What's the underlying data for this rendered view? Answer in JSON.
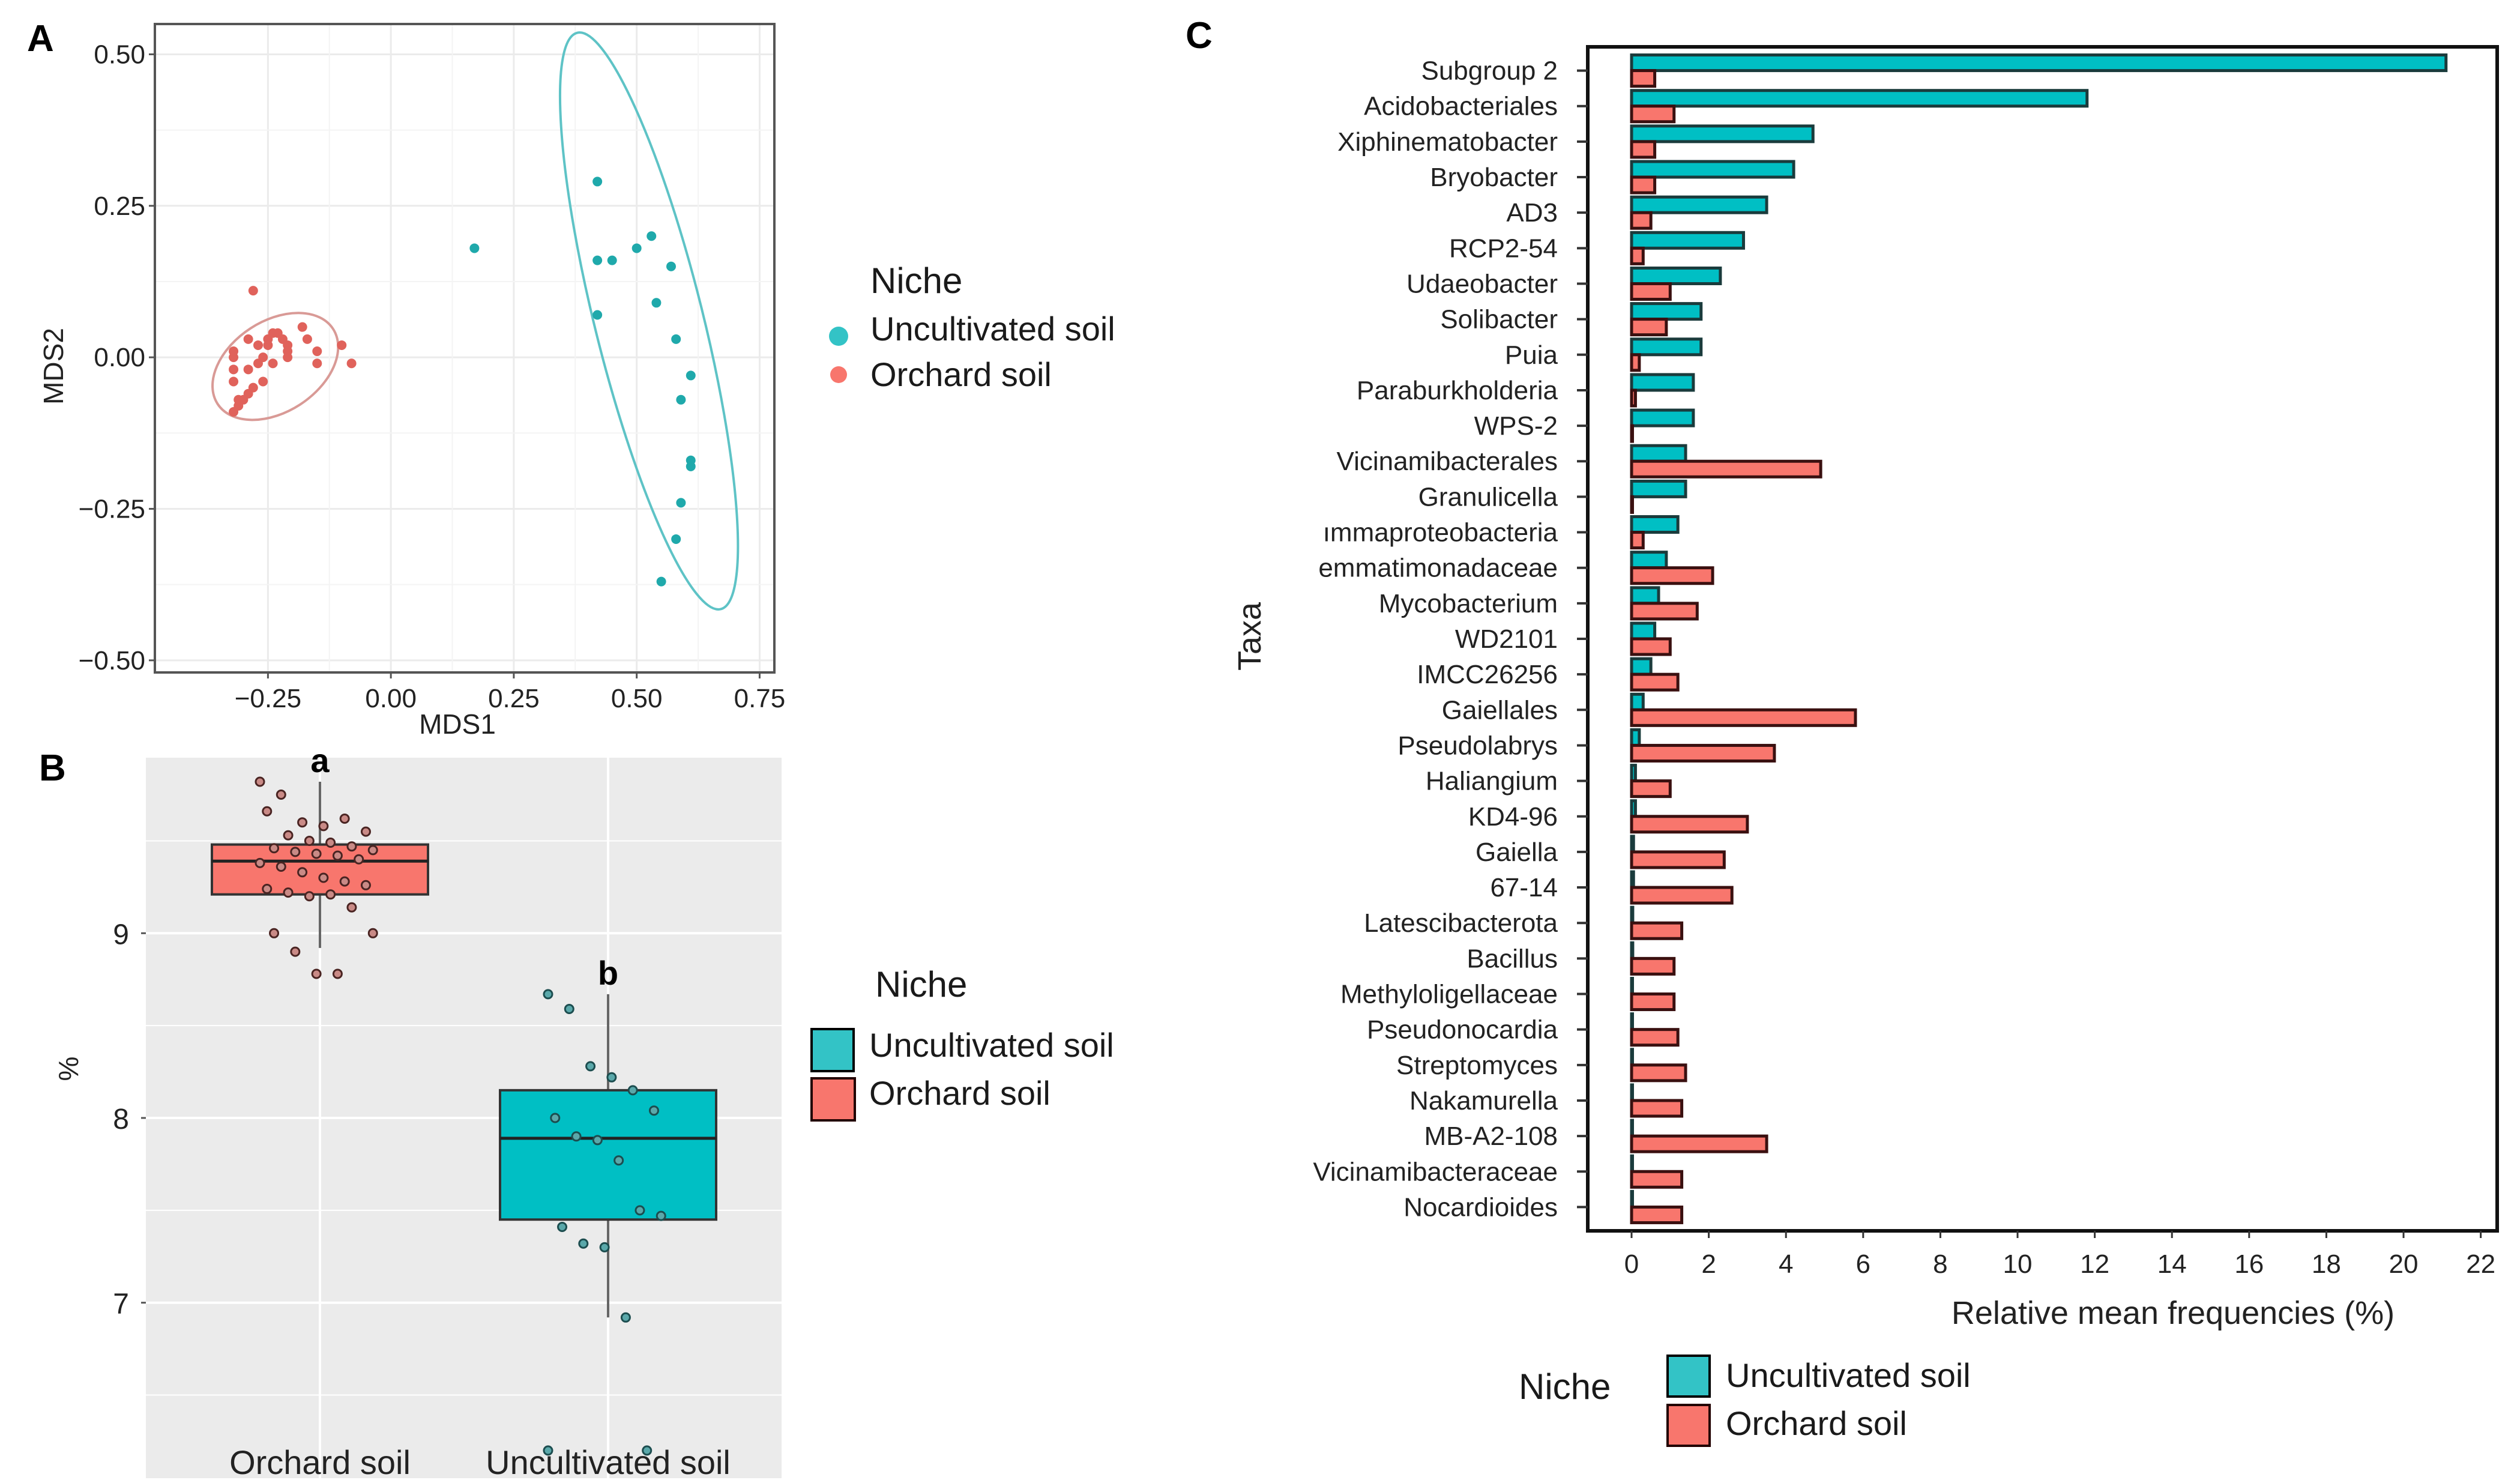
{
  "colors": {
    "uncultivated": "#00BFC4",
    "orchard": "#F8766D",
    "uncultivated_dark": "#1f6f72",
    "orchard_dark": "#7a2a25",
    "panel_b_bg": "#EBEBEB",
    "grid_light": "#EBEBEB"
  },
  "chart_data": [
    {
      "panel": "A",
      "type": "scatter",
      "title": "",
      "xlabel": "MDS1",
      "ylabel": "MDS2",
      "xlim": [
        -0.48,
        0.78
      ],
      "ylim": [
        -0.52,
        0.55
      ],
      "xticks": [
        "−0.25",
        "0.00",
        "0.25",
        "0.50",
        "0.75"
      ],
      "xtick_values": [
        -0.25,
        0,
        0.25,
        0.5,
        0.75
      ],
      "yticks": [
        "0.50",
        "0.25",
        "0.00",
        "−0.25",
        "−0.50"
      ],
      "ytick_values": [
        0.5,
        0.25,
        0,
        -0.25,
        -0.5
      ],
      "grid": true,
      "legend": {
        "title": "Niche",
        "position": "right",
        "entries": [
          "Uncultivated soil",
          "Orchard soil"
        ]
      },
      "series": [
        {
          "name": "Uncultivated soil",
          "points": [
            [
              0.17,
              0.18
            ],
            [
              0.42,
              0.29
            ],
            [
              0.42,
              0.16
            ],
            [
              0.45,
              0.16
            ],
            [
              0.5,
              0.18
            ],
            [
              0.53,
              0.2
            ],
            [
              0.57,
              0.15
            ],
            [
              0.42,
              0.07
            ],
            [
              0.54,
              0.09
            ],
            [
              0.58,
              0.03
            ],
            [
              0.61,
              -0.03
            ],
            [
              0.59,
              -0.07
            ],
            [
              0.61,
              -0.17
            ],
            [
              0.61,
              -0.18
            ],
            [
              0.59,
              -0.24
            ],
            [
              0.58,
              -0.3
            ],
            [
              0.55,
              -0.37
            ]
          ],
          "ellipse": {
            "cx": 0.525,
            "cy": 0.06,
            "rx": 0.11,
            "ry": 0.49,
            "angle_deg": -14
          }
        },
        {
          "name": "Orchard soil",
          "points": [
            [
              -0.28,
              0.11
            ],
            [
              -0.18,
              0.05
            ],
            [
              -0.17,
              0.03
            ],
            [
              -0.1,
              0.02
            ],
            [
              -0.08,
              -0.01
            ],
            [
              -0.15,
              0.01
            ],
            [
              -0.15,
              -0.01
            ],
            [
              -0.22,
              0.03
            ],
            [
              -0.21,
              0.02
            ],
            [
              -0.23,
              0.04
            ],
            [
              -0.24,
              0.04
            ],
            [
              -0.25,
              0.02
            ],
            [
              -0.25,
              0.03
            ],
            [
              -0.21,
              0.01
            ],
            [
              -0.21,
              0.0
            ],
            [
              -0.27,
              0.02
            ],
            [
              -0.29,
              0.03
            ],
            [
              -0.32,
              0.01
            ],
            [
              -0.32,
              0.0
            ],
            [
              -0.26,
              0.0
            ],
            [
              -0.27,
              -0.01
            ],
            [
              -0.24,
              -0.01
            ],
            [
              -0.32,
              -0.02
            ],
            [
              -0.29,
              -0.02
            ],
            [
              -0.32,
              -0.04
            ],
            [
              -0.26,
              -0.04
            ],
            [
              -0.28,
              -0.05
            ],
            [
              -0.29,
              -0.06
            ],
            [
              -0.3,
              -0.07
            ],
            [
              -0.31,
              -0.07
            ],
            [
              -0.31,
              -0.08
            ],
            [
              -0.32,
              -0.09
            ]
          ],
          "ellipse": {
            "cx": -0.235,
            "cy": -0.015,
            "rx": 0.14,
            "ry": 0.075,
            "angle_deg": -33
          }
        }
      ]
    },
    {
      "panel": "B",
      "type": "box",
      "title": "",
      "xlabel": "",
      "ylabel": "%",
      "ylim": [
        6.05,
        9.95
      ],
      "yticks": [
        "9",
        "8",
        "7"
      ],
      "ytick_values": [
        9,
        8,
        7
      ],
      "categories": [
        "Orchard soil",
        "Uncultivated soil"
      ],
      "significance_letters": [
        "a",
        "b"
      ],
      "legend": {
        "title": "Niche",
        "position": "right",
        "entries": [
          "Uncultivated soil",
          "Orchard soil"
        ]
      },
      "boxes": [
        {
          "name": "Orchard soil",
          "q1": 9.21,
          "median": 9.39,
          "q3": 9.48,
          "whisker_low": 8.92,
          "whisker_high": 9.82,
          "points": [
            9.82,
            9.75,
            9.6,
            9.58,
            9.62,
            9.55,
            9.66,
            9.53,
            9.5,
            9.49,
            9.47,
            9.45,
            9.46,
            9.44,
            9.43,
            9.42,
            9.4,
            9.38,
            9.36,
            9.33,
            9.3,
            9.28,
            9.26,
            9.24,
            9.22,
            9.2,
            9.21,
            9.14,
            9.0,
            9.0,
            8.9,
            8.78,
            8.78
          ]
        },
        {
          "name": "Uncultivated soil",
          "q1": 7.45,
          "median": 7.89,
          "q3": 8.15,
          "whisker_low": 6.92,
          "whisker_high": 8.67,
          "points": [
            8.67,
            8.59,
            8.28,
            8.22,
            8.15,
            8.04,
            8.0,
            7.9,
            7.88,
            7.77,
            7.5,
            7.47,
            7.41,
            7.32,
            7.3,
            6.92,
            6.2,
            6.2
          ]
        }
      ]
    },
    {
      "panel": "C",
      "type": "bar",
      "orientation": "horizontal",
      "title": "",
      "xlabel": "Relative mean frequencies (%)",
      "ylabel": "Taxa",
      "xlim": [
        0,
        22
      ],
      "xticks": [
        "0",
        "2",
        "4",
        "6",
        "8",
        "10",
        "12",
        "14",
        "16",
        "18",
        "20",
        "22"
      ],
      "legend": {
        "title": "Niche",
        "position": "bottom",
        "entries": [
          "Uncultivated soil",
          "Orchard soil"
        ]
      },
      "categories": [
        "Subgroup 2",
        "Acidobacteriales",
        "Xiphinematobacter",
        "Bryobacter",
        "AD3",
        "RCP2-54",
        "Udaeobacter",
        "Solibacter",
        "Puia",
        "Paraburkholderia",
        "WPS-2",
        "Vicinamibacterales",
        "Granulicella",
        "ımmaproteobacteria",
        "emmatimonadaceae",
        "Mycobacterium",
        "WD2101",
        "IMCC26256",
        "Gaiellales",
        "Pseudolabrys",
        "Haliangium",
        "KD4-96",
        "Gaiella",
        "67-14",
        "Latescibacterota",
        "Bacillus",
        "Methyloligellaceae",
        "Pseudonocardia",
        "Streptomyces",
        "Nakamurella",
        "MB-A2-108",
        "Vicinamibacteraceae",
        "Nocardioides"
      ],
      "series": [
        {
          "name": "Uncultivated soil",
          "values": [
            21.1,
            11.8,
            4.7,
            4.2,
            3.5,
            2.9,
            2.3,
            1.8,
            1.8,
            1.6,
            1.6,
            1.4,
            1.4,
            1.2,
            0.9,
            0.7,
            0.6,
            0.5,
            0.3,
            0.2,
            0.1,
            0.1,
            0.05,
            0.05,
            0.03,
            0.03,
            0.02,
            0.02,
            0.02,
            0.0,
            0.0,
            0.0,
            0.0
          ]
        },
        {
          "name": "Orchard soil",
          "values": [
            0.6,
            1.1,
            0.6,
            0.6,
            0.5,
            0.3,
            1.0,
            0.9,
            0.2,
            0.1,
            0.0,
            4.9,
            0.0,
            0.3,
            2.1,
            1.7,
            1.0,
            1.2,
            5.8,
            3.7,
            1.0,
            3.0,
            2.4,
            2.6,
            1.3,
            1.1,
            1.1,
            1.2,
            1.4,
            1.3,
            3.5,
            1.3,
            1.3
          ]
        }
      ]
    }
  ],
  "panels": {
    "A": {
      "letter": "A",
      "legend_title": "Niche",
      "legend_items": [
        "Uncultivated soil",
        "Orchard soil"
      ],
      "xlabel": "MDS1",
      "ylabel": "MDS2"
    },
    "B": {
      "letter": "B",
      "legend_title": "Niche",
      "legend_items": [
        "Uncultivated soil",
        "Orchard soil"
      ],
      "ylabel": "%"
    },
    "C": {
      "letter": "C",
      "legend_title": "Niche",
      "legend_items": [
        "Uncultivated soil",
        "Orchard soil"
      ],
      "xlabel": "Relative mean frequencies (%)",
      "ylabel": "Taxa"
    }
  }
}
